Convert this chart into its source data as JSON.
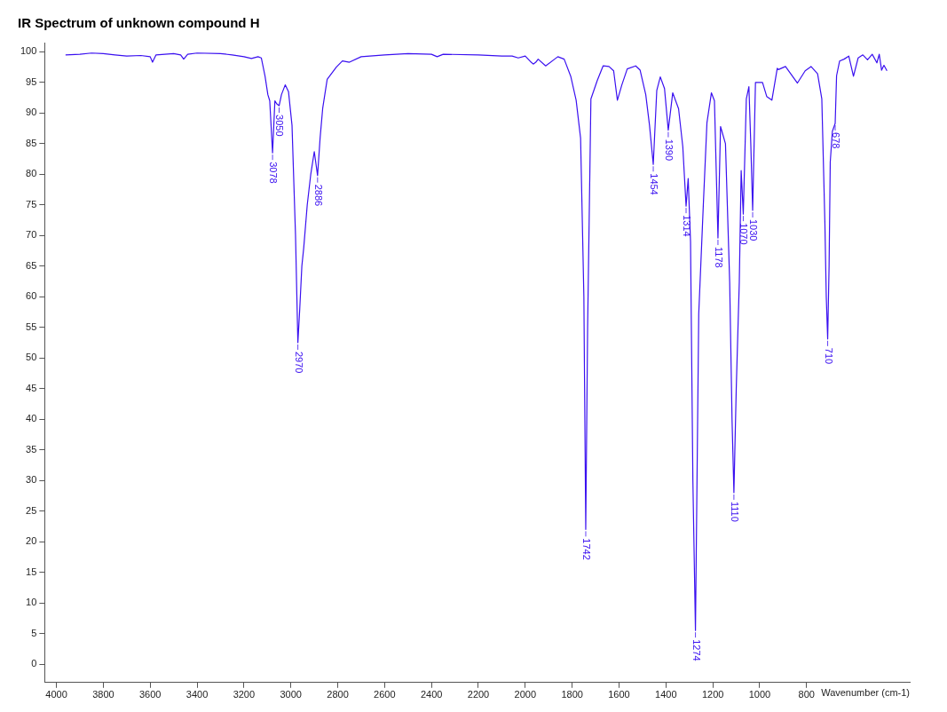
{
  "chart_data": {
    "type": "line",
    "title": "IR Spectrum of unknown compound H",
    "xlabel": "Wavenumber (cm-1)",
    "xlim": [
      4050,
      360
    ],
    "ylim": [
      -3,
      101.5
    ],
    "xticks": [
      4000,
      3800,
      3600,
      3400,
      3200,
      3000,
      2800,
      2600,
      2400,
      2200,
      2000,
      1800,
      1600,
      1400,
      1200,
      1000,
      800
    ],
    "yticks": [
      0,
      5,
      10,
      15,
      20,
      25,
      30,
      35,
      40,
      45,
      50,
      55,
      60,
      65,
      70,
      75,
      80,
      85,
      90,
      95,
      100
    ],
    "grid": false,
    "legend": false,
    "marker": "none",
    "line_style": "solid",
    "series": [
      {
        "color": "#3a10f0",
        "x": [
          3961,
          3900,
          3850,
          3800,
          3750,
          3700,
          3640,
          3600,
          3590,
          3575,
          3500,
          3470,
          3457,
          3440,
          3400,
          3300,
          3250,
          3200,
          3168,
          3140,
          3126,
          3110,
          3098,
          3090,
          3078,
          3068,
          3060,
          3050,
          3040,
          3024,
          3010,
          2995,
          2980,
          2970,
          2962,
          2953,
          2945,
          2930,
          2915,
          2900,
          2886,
          2875,
          2864,
          2845,
          2806,
          2780,
          2750,
          2700,
          2600,
          2500,
          2400,
          2376,
          2350,
          2200,
          2100,
          2056,
          2030,
          2000,
          1975,
          1966,
          1955,
          1945,
          1913,
          1861,
          1834,
          1806,
          1783,
          1764,
          1750,
          1742,
          1734,
          1720,
          1693,
          1668,
          1643,
          1623,
          1607,
          1588,
          1565,
          1529,
          1510,
          1486,
          1470,
          1454,
          1439,
          1424,
          1406,
          1390,
          1371,
          1346,
          1328,
          1314,
          1305,
          1295,
          1285,
          1274,
          1266,
          1260,
          1240,
          1225,
          1206,
          1193,
          1185,
          1178,
          1167,
          1146,
          1128,
          1118,
          1110,
          1100,
          1087,
          1079,
          1070,
          1057,
          1046,
          1038,
          1030,
          1018,
          988,
          970,
          948,
          925,
          920,
          890,
          839,
          806,
          781,
          753,
          735,
          722,
          716,
          710,
          704,
          699,
          690,
          678,
          672,
          659,
          640,
          620,
          600,
          580,
          560,
          540,
          520,
          500,
          490,
          480,
          470,
          457
        ],
        "values": [
          99.5,
          99.6,
          99.8,
          99.7,
          99.5,
          99.3,
          99.4,
          99.2,
          98.3,
          99.5,
          99.7,
          99.5,
          98.8,
          99.6,
          99.8,
          99.7,
          99.5,
          99.2,
          98.9,
          99.2,
          99.0,
          96,
          93,
          92,
          83.5,
          92,
          91.5,
          91.2,
          93,
          94.6,
          93.5,
          88,
          70,
          52.5,
          58,
          65,
          68,
          75,
          80,
          83.7,
          79.8,
          86,
          90.8,
          95.5,
          97.5,
          98.5,
          98.3,
          99.2,
          99.5,
          99.7,
          99.6,
          99.2,
          99.6,
          99.5,
          99.3,
          99.3,
          99.0,
          99.3,
          98.3,
          98.0,
          98.3,
          98.8,
          97.7,
          99.2,
          98.8,
          96,
          92.1,
          85.9,
          60,
          22,
          55,
          92.3,
          95.3,
          97.7,
          97.6,
          96.9,
          92.1,
          94.6,
          97.2,
          97.7,
          97,
          93,
          88,
          81.6,
          93.7,
          95.9,
          94,
          87.2,
          93.3,
          90.7,
          84.5,
          74.8,
          79.3,
          69,
          30,
          5.5,
          35,
          57.2,
          75.4,
          88.4,
          93.3,
          92,
          80,
          69.6,
          87.8,
          85,
          62.4,
          40,
          28,
          45,
          62.4,
          80.6,
          73.5,
          92.3,
          94.3,
          85,
          74.1,
          95,
          95,
          92.7,
          92.1,
          97.3,
          97.1,
          97.6,
          94.9,
          96.9,
          97.6,
          96.4,
          92.3,
          72.3,
          60,
          53.1,
          65,
          82,
          87,
          88.3,
          96.1,
          98.5,
          98.8,
          99.3,
          96,
          99,
          99.5,
          98.7,
          99.6,
          98.2,
          99.6,
          97,
          97.8,
          96.9
        ]
      }
    ],
    "annotations": [
      {
        "text": "3078",
        "x": 3078,
        "y": 83.5
      },
      {
        "text": "3050",
        "x": 3050,
        "y": 91.2
      },
      {
        "text": "2970",
        "x": 2970,
        "y": 52.5
      },
      {
        "text": "2886",
        "x": 2886,
        "y": 79.8
      },
      {
        "text": "1742",
        "x": 1742,
        "y": 22
      },
      {
        "text": "1454",
        "x": 1454,
        "y": 81.6
      },
      {
        "text": "1390",
        "x": 1390,
        "y": 87.2
      },
      {
        "text": "1314",
        "x": 1314,
        "y": 74.8
      },
      {
        "text": "1274",
        "x": 1274,
        "y": 5.5
      },
      {
        "text": "1178",
        "x": 1178,
        "y": 69.6
      },
      {
        "text": "1110",
        "x": 1110,
        "y": 28
      },
      {
        "text": "1070",
        "x": 1070,
        "y": 73.5
      },
      {
        "text": "1030",
        "x": 1030,
        "y": 74.1
      },
      {
        "text": "710",
        "x": 710,
        "y": 53.1
      },
      {
        "text": "678",
        "x": 678,
        "y": 88.3
      }
    ]
  }
}
